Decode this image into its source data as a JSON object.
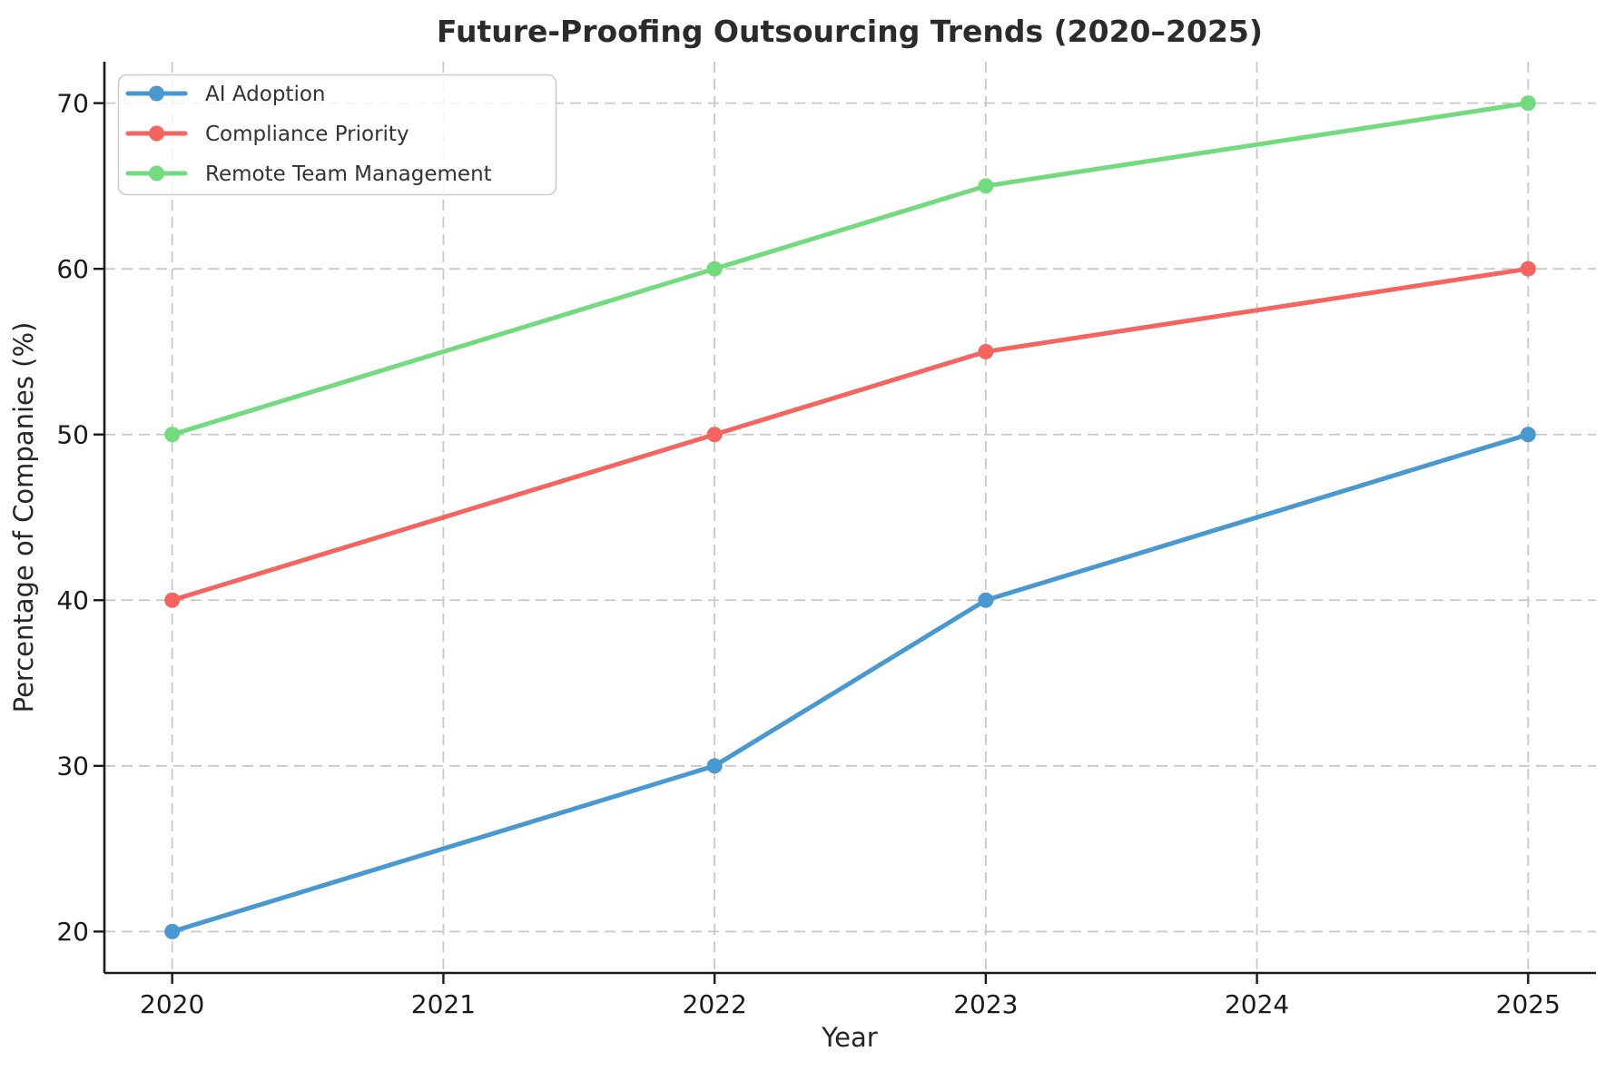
{
  "chart_data": {
    "type": "line",
    "title": "Future-Proofing Outsourcing Trends (2020–2025)",
    "xlabel": "Year",
    "ylabel": "Percentage of Companies (%)",
    "x": [
      2020,
      2022,
      2023,
      2025
    ],
    "series": [
      {
        "name": "AI Adoption",
        "color": "#4898d1",
        "values": [
          20,
          30,
          40,
          50
        ]
      },
      {
        "name": "Compliance Priority",
        "color": "#f5645f",
        "values": [
          40,
          50,
          55,
          60
        ]
      },
      {
        "name": "Remote Team Management",
        "color": "#72db7e",
        "values": [
          50,
          60,
          65,
          70
        ]
      }
    ],
    "xticks": [
      2020,
      2021,
      2022,
      2023,
      2024,
      2025
    ],
    "yticks": [
      20,
      30,
      40,
      50,
      60,
      70
    ],
    "xlim": [
      2019.75,
      2025.25
    ],
    "ylim": [
      17.5,
      72.5
    ],
    "grid": "dashed",
    "grid_color": "#c8c8c8",
    "axis_color": "#1a1a1a",
    "legend_position": "upper left",
    "marker": "circle",
    "line_width": 5,
    "marker_radius": 8.5
  }
}
